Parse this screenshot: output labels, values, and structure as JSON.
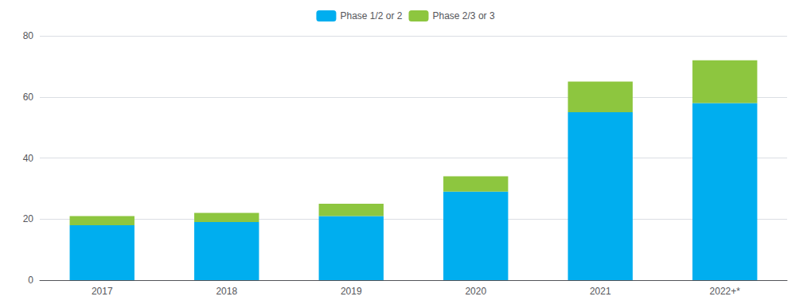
{
  "chart_data": {
    "type": "bar",
    "stacked": true,
    "categories": [
      "2017",
      "2018",
      "2019",
      "2020",
      "2021",
      "2022+*"
    ],
    "series": [
      {
        "name": "Phase 1/2 or 2",
        "color": "#00AEEF",
        "values": [
          18,
          19,
          21,
          29,
          55,
          58
        ]
      },
      {
        "name": "Phase 2/3 or 3",
        "color": "#8DC63F",
        "values": [
          3,
          3,
          4,
          5,
          10,
          14
        ]
      }
    ],
    "ylim": [
      0,
      80
    ],
    "yticks": [
      0,
      20,
      40,
      60,
      80
    ],
    "grid": true,
    "legend": "upper center"
  }
}
